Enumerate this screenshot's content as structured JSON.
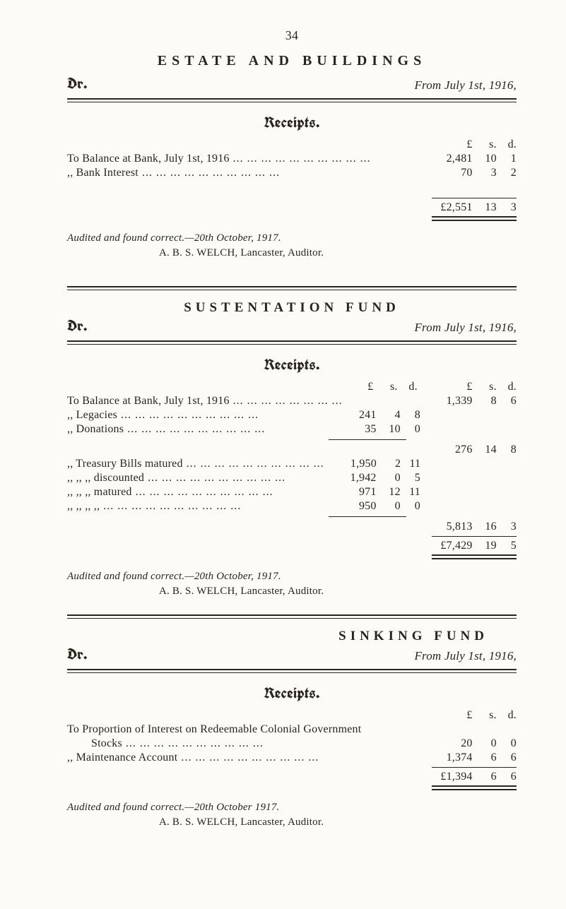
{
  "page_number": "34",
  "sections": {
    "estate": {
      "title": "ESTATE  AND  BUILDINGS",
      "dr": "Dr.",
      "from": "From July 1st, 1916,",
      "receipts_label": "Receipts.",
      "lsd": {
        "l": "£",
        "s": "s.",
        "d": "d."
      },
      "lines": [
        {
          "desc": "To Balance at Bank, July 1st, 1916",
          "l": "2,481",
          "s": "10",
          "d": "1"
        },
        {
          "desc": ",, Bank Interest",
          "l": "70",
          "s": "3",
          "d": "2"
        }
      ],
      "total": {
        "l": "£2,551",
        "s": "13",
        "d": "3"
      },
      "audit": "Audited and found correct.—20th October, 1917.",
      "auditor": "A. B. S. WELCH, Lancaster, Auditor."
    },
    "sustentation": {
      "title": "SUSTENTATION  FUND",
      "dr": "Dr.",
      "from": "From July 1st, 1916,",
      "receipts_label": "Receipts.",
      "lsd": {
        "l": "£",
        "s": "s.",
        "d": "d."
      },
      "opening": {
        "desc": "To Balance at Bank, July 1st, 1916",
        "l": "1,339",
        "s": "8",
        "d": "6"
      },
      "group_a": [
        {
          "desc": ",, Legacies",
          "l": "241",
          "s": "4",
          "d": "8"
        },
        {
          "desc": ",, Donations",
          "l": "35",
          "s": "10",
          "d": "0"
        }
      ],
      "subtotal_a": {
        "l": "276",
        "s": "14",
        "d": "8"
      },
      "group_b": [
        {
          "desc": ",, Treasury Bills matured",
          "l": "1,950",
          "s": "2",
          "d": "11"
        },
        {
          "desc": ",,     ,,        ,,  discounted",
          "l": "1,942",
          "s": "0",
          "d": "5"
        },
        {
          "desc": ",,     ,,        ,,  matured",
          "l": "971",
          "s": "12",
          "d": "11"
        },
        {
          "desc": ",,     ,,        ,,     ,,",
          "l": "950",
          "s": "0",
          "d": "0"
        }
      ],
      "subtotal_b": {
        "l": "5,813",
        "s": "16",
        "d": "3"
      },
      "total": {
        "l": "£7,429",
        "s": "19",
        "d": "5"
      },
      "audit": "Audited and found correct.—20th October, 1917.",
      "auditor": "A. B. S. WELCH, Lancaster, Auditor."
    },
    "sinking": {
      "title": "SINKING  FUND",
      "dr": "Dr.",
      "from": "From July 1st, 1916,",
      "receipts_label": "Receipts.",
      "lsd": {
        "l": "£",
        "s": "s.",
        "d": "d."
      },
      "line1a": "To Proportion of Interest on Redeemable Colonial Government",
      "line1b": "        Stocks",
      "line1_amt": {
        "l": "20",
        "s": "0",
        "d": "0"
      },
      "line2": ",, Maintenance Account",
      "line2_amt": {
        "l": "1,374",
        "s": "6",
        "d": "6"
      },
      "total": {
        "l": "£1,394",
        "s": "6",
        "d": "6"
      },
      "audit": "Audited and found correct.—20th October 1917.",
      "auditor": "A. B. S. WELCH, Lancaster, Auditor."
    }
  }
}
